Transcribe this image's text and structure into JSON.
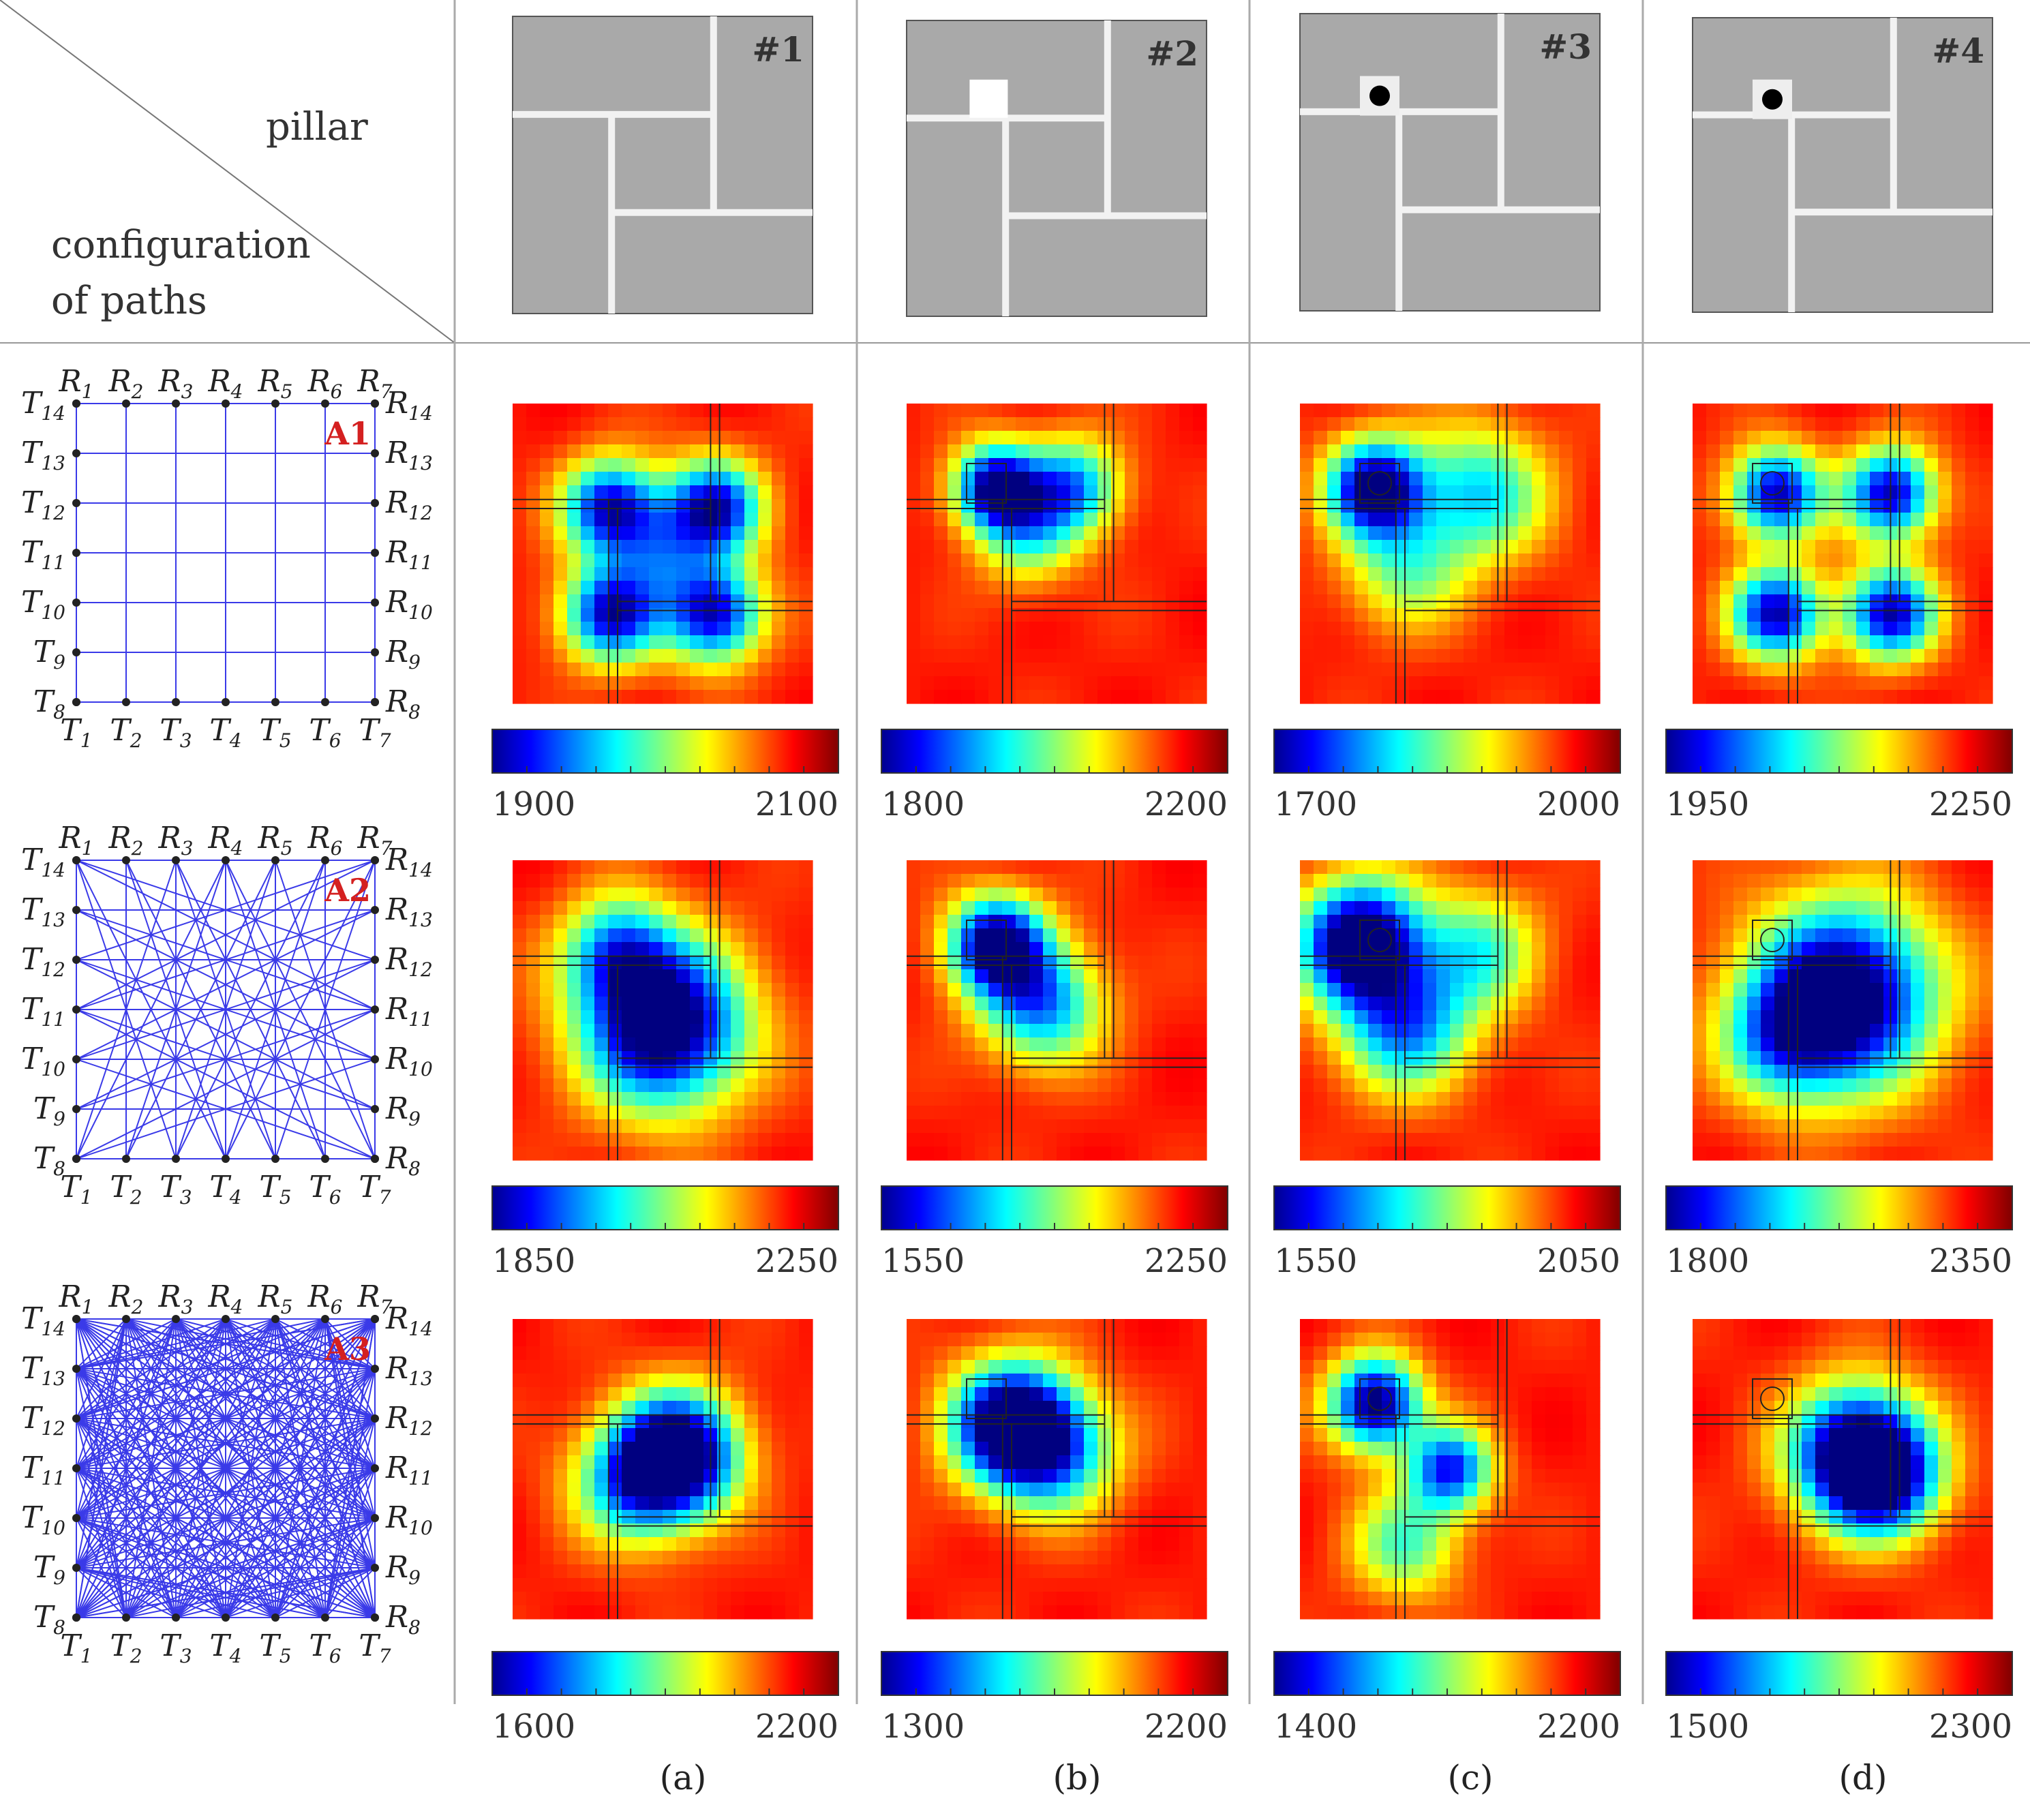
{
  "header": {
    "pillar_label": "pillar",
    "config_label_line1": "configuration",
    "config_label_line2": "of paths"
  },
  "columns": [
    {
      "id": "#1",
      "caption": "(a)",
      "pillar": "none"
    },
    {
      "id": "#2",
      "caption": "(b)",
      "pillar": "square-void"
    },
    {
      "id": "#3",
      "caption": "(c)",
      "pillar": "circular-void"
    },
    {
      "id": "#4",
      "caption": "(d)",
      "pillar": "circular-void"
    }
  ],
  "path_configs": [
    {
      "name": "A1",
      "type": "orthogonal"
    },
    {
      "name": "A2",
      "type": "orthogonal-plus-diagonal"
    },
    {
      "name": "A3",
      "type": "all-to-all"
    }
  ],
  "transducers": {
    "top": [
      "R1",
      "R2",
      "R3",
      "R4",
      "R5",
      "R6",
      "R7"
    ],
    "bottom": [
      "T1",
      "T2",
      "T3",
      "T4",
      "T5",
      "T6",
      "T7"
    ],
    "left": [
      "T14",
      "T13",
      "T12",
      "T11",
      "T10",
      "T9",
      "T8"
    ],
    "right": [
      "R14",
      "R13",
      "R12",
      "R11",
      "R10",
      "R9",
      "R8"
    ]
  },
  "colorbars": [
    [
      {
        "min": "1900",
        "max": "2100"
      },
      {
        "min": "1800",
        "max": "2200"
      },
      {
        "min": "1700",
        "max": "2000"
      },
      {
        "min": "1950",
        "max": "2250"
      }
    ],
    [
      {
        "min": "1850",
        "max": "2250"
      },
      {
        "min": "1550",
        "max": "2250"
      },
      {
        "min": "1550",
        "max": "2050"
      },
      {
        "min": "1800",
        "max": "2350"
      }
    ],
    [
      {
        "min": "1600",
        "max": "2200"
      },
      {
        "min": "1300",
        "max": "2200"
      },
      {
        "min": "1400",
        "max": "2200"
      },
      {
        "min": "1500",
        "max": "2300"
      }
    ]
  ],
  "colors": {
    "stone": "#a9a9a9",
    "joint": "#f2f2f2",
    "path_line": "#3a3ae8",
    "config_label": "#d42020",
    "divider": "#999999"
  },
  "icons": [
    "transducer-dot-icon",
    "void-circle-icon",
    "void-square-icon"
  ]
}
